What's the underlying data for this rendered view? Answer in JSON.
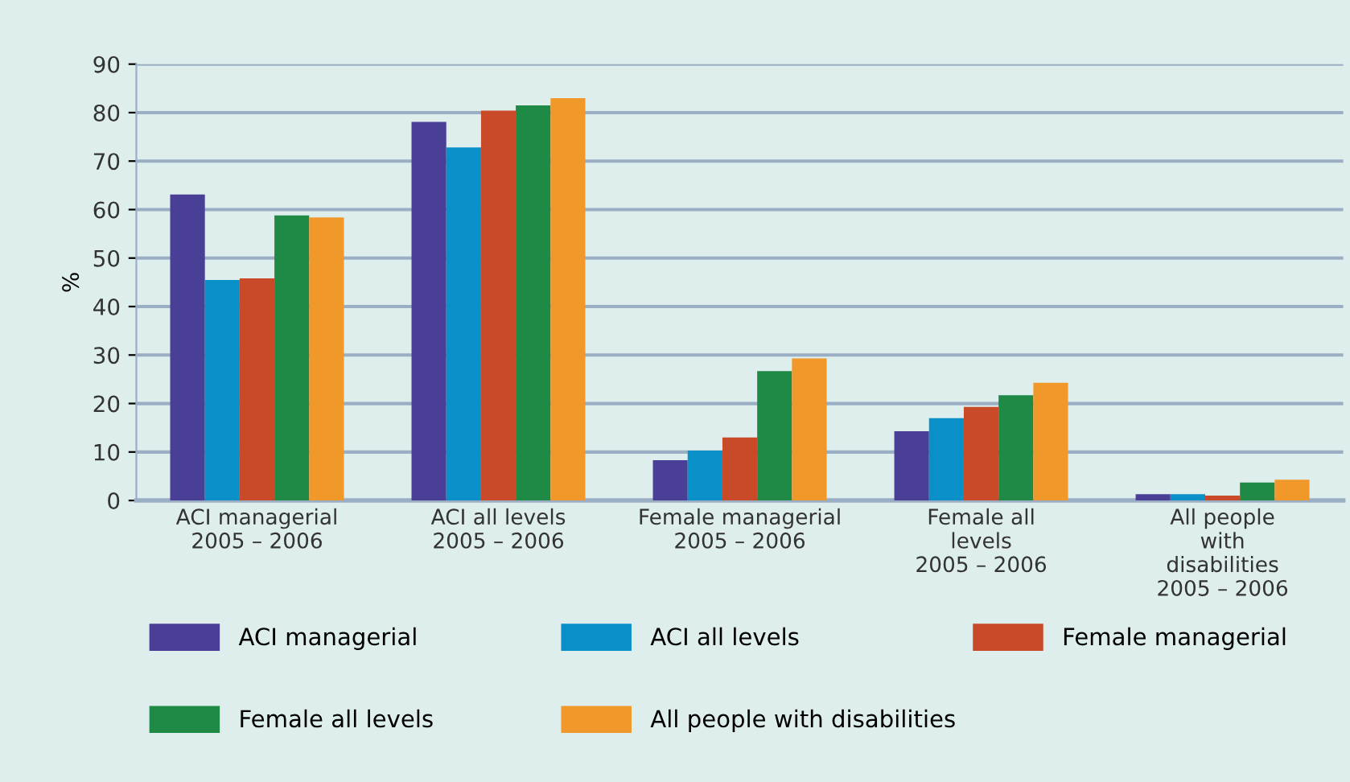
{
  "chart_data": {
    "type": "bar",
    "ylabel": "%",
    "categories": [
      "ACI managerial\n2005 – 2006",
      "ACI all levels\n2005 – 2006",
      "Female managerial\n2005 – 2006",
      "Female all\nlevels\n2005 – 2006",
      "All people\nwith\ndisabilities\n2005 – 2006"
    ],
    "series": [
      {
        "name": "ACI managerial",
        "color": "#4a3f96",
        "values": [
          63.1,
          78.1,
          8.3,
          14.3,
          1.3
        ]
      },
      {
        "name": "ACI all levels",
        "color": "#0a90c8",
        "values": [
          45.5,
          72.8,
          10.3,
          17,
          1.3
        ]
      },
      {
        "name": "Female managerial",
        "color": "#c84a28",
        "values": [
          45.8,
          80.4,
          13,
          19.3,
          1
        ]
      },
      {
        "name": "Female all levels",
        "color": "#1f8a45",
        "values": [
          58.8,
          81.5,
          26.7,
          21.7,
          3.7
        ]
      },
      {
        "name": "All people with disabilities",
        "color": "#f0982a",
        "values": [
          58.4,
          83,
          29.3,
          24.3,
          4.3
        ]
      }
    ],
    "ylim": [
      0,
      90
    ],
    "yticks": [
      0,
      10,
      20,
      30,
      40,
      50,
      60,
      70,
      80,
      90
    ],
    "grid": "y",
    "legend": "bottom"
  }
}
